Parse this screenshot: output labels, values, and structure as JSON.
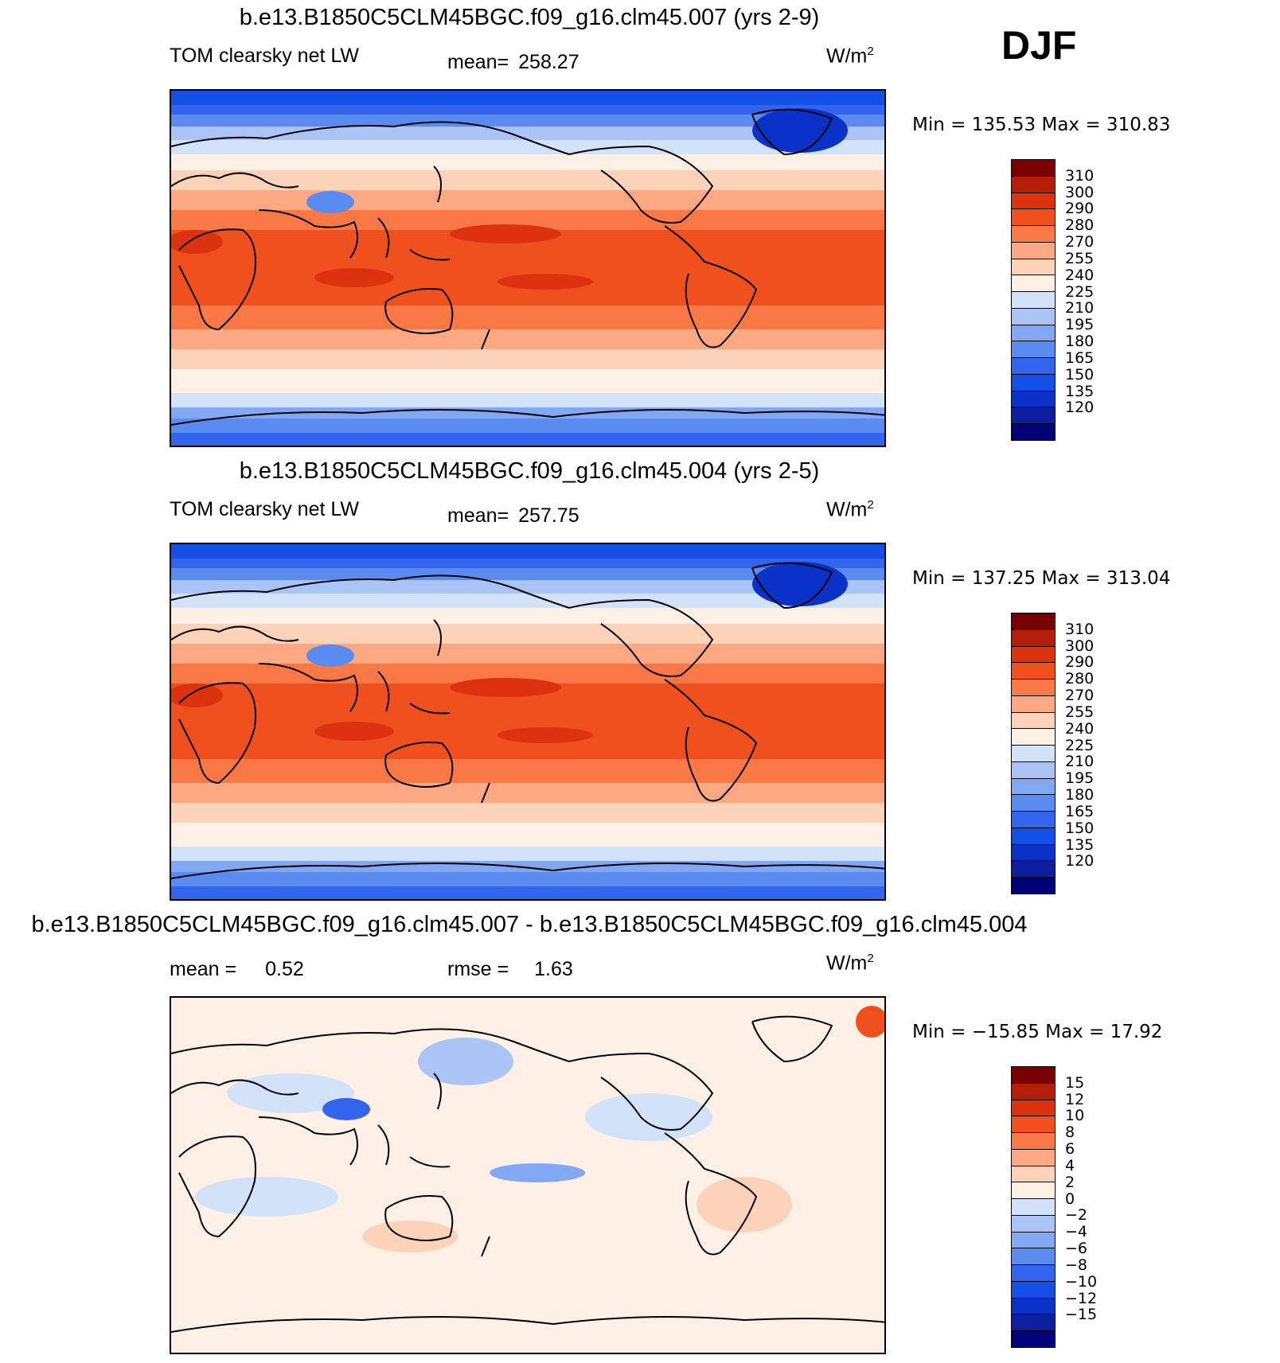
{
  "season": "DJF",
  "units_base": "W/m",
  "units_sup": "2",
  "colors": {
    "abs": [
      "#000078",
      "#0c1ea0",
      "#0a32c8",
      "#1450e6",
      "#3264ee",
      "#5a8cf0",
      "#82a8f4",
      "#aac4f6",
      "#d2e2f8",
      "#fff0e6",
      "#fcd2b8",
      "#fca882",
      "#fa7846",
      "#f0501e",
      "#dc3210",
      "#b41e08",
      "#780000"
    ],
    "diff": [
      "#000078",
      "#0c1ea0",
      "#0a32c8",
      "#1450e6",
      "#3264ee",
      "#5a8cf0",
      "#82a8f4",
      "#aac4f6",
      "#d2e2f8",
      "#fff0e6",
      "#fcd2b8",
      "#fca882",
      "#fa7846",
      "#f0501e",
      "#dc3210",
      "#b41e08",
      "#780000"
    ]
  },
  "panels": [
    {
      "title": "b.e13.B1850C5CLM45BGC.f09_g16.clm45.007 (yrs 2-9)",
      "left_label": "TOM clearsky net LW",
      "mean_label": "mean=",
      "mean_value": "258.27",
      "min_max": "Min  =  135.53  Max  =  310.83",
      "ticks": [
        "310",
        "300",
        "290",
        "280",
        "270",
        "255",
        "240",
        "225",
        "210",
        "195",
        "180",
        "165",
        "150",
        "135",
        "120"
      ]
    },
    {
      "title": "b.e13.B1850C5CLM45BGC.f09_g16.clm45.004 (yrs 2-5)",
      "left_label": "TOM clearsky net LW",
      "mean_label": "mean=",
      "mean_value": "257.75",
      "min_max": "Min  =  137.25  Max  =  313.04",
      "ticks": [
        "310",
        "300",
        "290",
        "280",
        "270",
        "255",
        "240",
        "225",
        "210",
        "195",
        "180",
        "165",
        "150",
        "135",
        "120"
      ]
    },
    {
      "title": "b.e13.B1850C5CLM45BGC.f09_g16.clm45.007 - b.e13.B1850C5CLM45BGC.f09_g16.clm45.004",
      "mean_label": "mean =",
      "mean_value": "0.52",
      "rmse_label": "rmse =",
      "rmse_value": "1.63",
      "min_max": "Min  =  −15.85  Max  =    17.92",
      "ticks": [
        "15",
        "12",
        "10",
        "8",
        "6",
        "4",
        "2",
        "0",
        "−2",
        "−4",
        "−6",
        "−8",
        "−10",
        "−12",
        "−15"
      ]
    }
  ]
}
